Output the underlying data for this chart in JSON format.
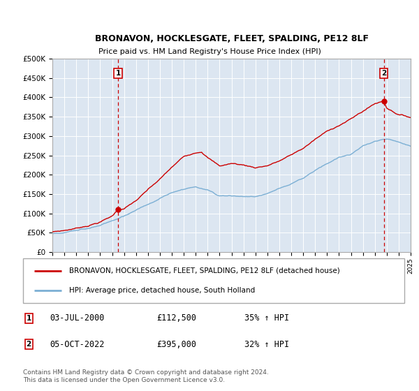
{
  "title": "BRONAVON, HOCKLESGATE, FLEET, SPALDING, PE12 8LF",
  "subtitle": "Price paid vs. HM Land Registry's House Price Index (HPI)",
  "plot_bg_color": "#dce6f1",
  "ylim": [
    0,
    500000
  ],
  "yticks": [
    0,
    50000,
    100000,
    150000,
    200000,
    250000,
    300000,
    350000,
    400000,
    450000,
    500000
  ],
  "ytick_labels": [
    "£0",
    "£50K",
    "£100K",
    "£150K",
    "£200K",
    "£250K",
    "£300K",
    "£350K",
    "£400K",
    "£450K",
    "£500K"
  ],
  "red_line_color": "#cc0000",
  "blue_line_color": "#7bafd4",
  "vline_color": "#cc0000",
  "marker1_year": 2000.5,
  "marker1_value": 112500,
  "marker2_year": 2022.75,
  "marker2_value": 395000,
  "legend_label_red": "BRONAVON, HOCKLESGATE, FLEET, SPALDING, PE12 8LF (detached house)",
  "legend_label_blue": "HPI: Average price, detached house, South Holland",
  "annotation1_date": "03-JUL-2000",
  "annotation1_price": "£112,500",
  "annotation1_hpi": "35% ↑ HPI",
  "annotation2_date": "05-OCT-2022",
  "annotation2_price": "£395,000",
  "annotation2_hpi": "32% ↑ HPI",
  "footer": "Contains HM Land Registry data © Crown copyright and database right 2024.\nThis data is licensed under the Open Government Licence v3.0.",
  "title_fontsize": 9,
  "subtitle_fontsize": 8
}
